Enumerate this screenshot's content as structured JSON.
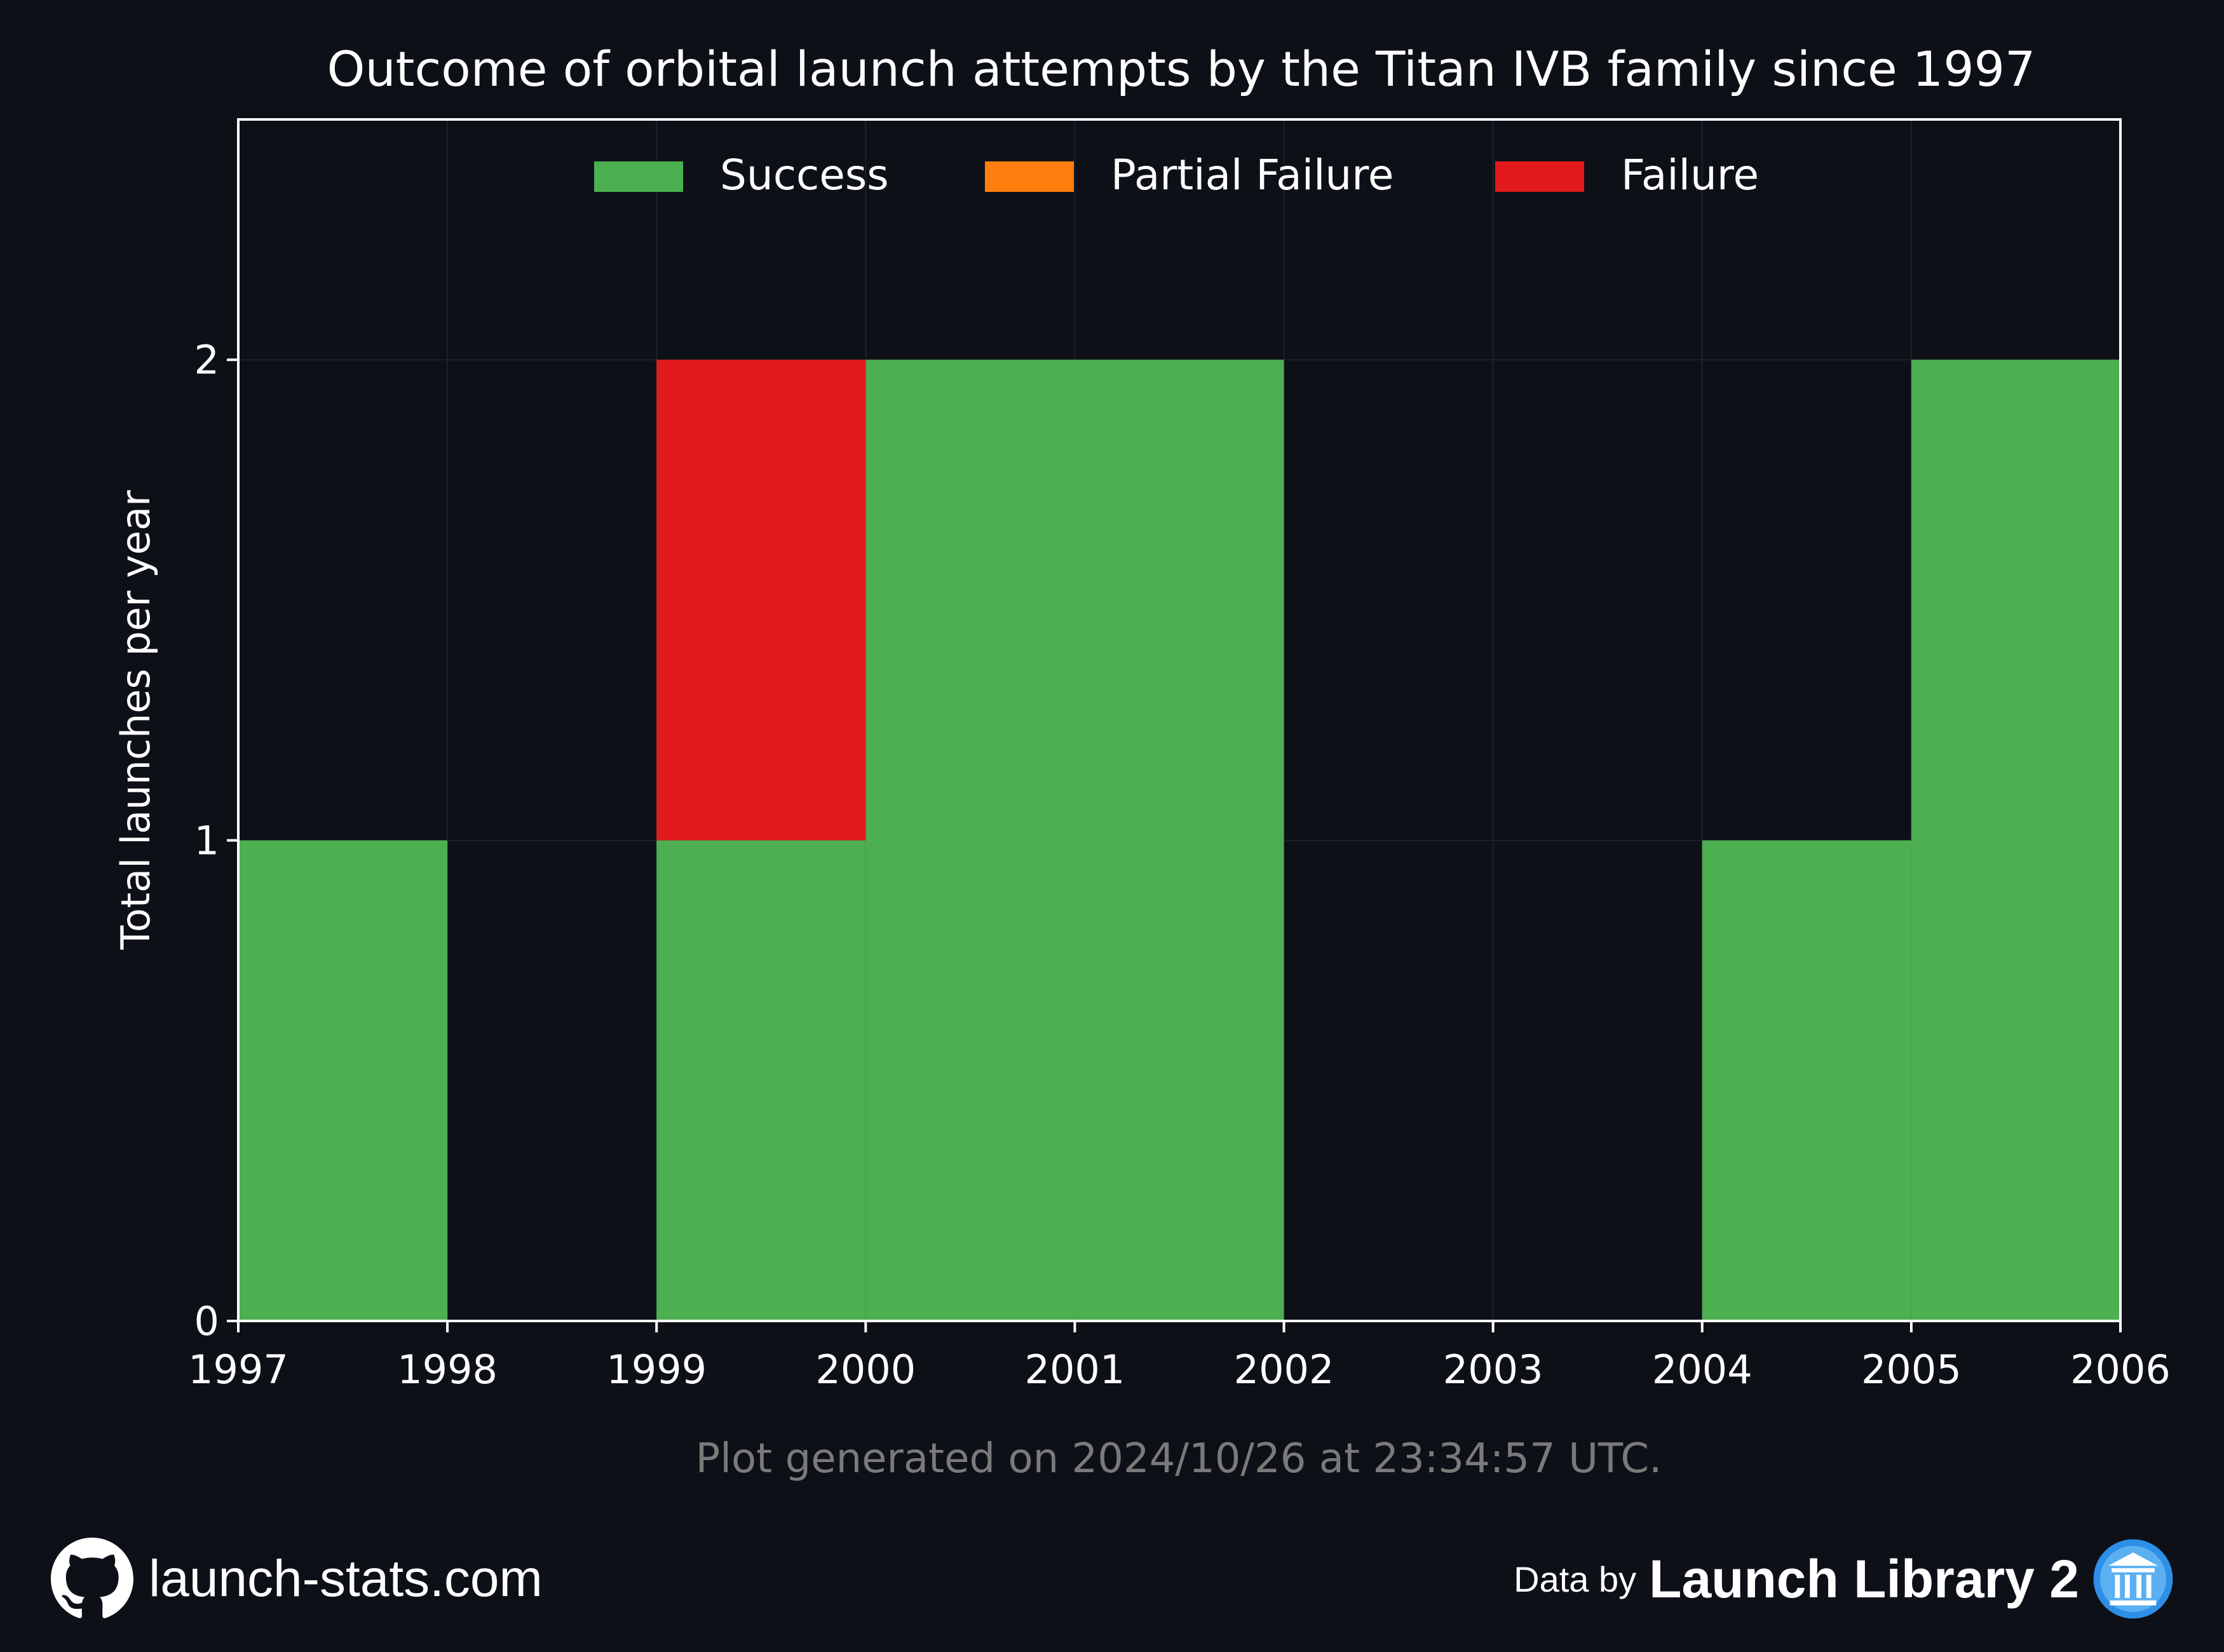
{
  "chart_data": {
    "type": "bar",
    "title": "Outcome of orbital launch attempts by the Titan IVB family since 1997",
    "xlabel": "",
    "ylabel": "Total launches per year",
    "categories": [
      "1997",
      "1998",
      "1999",
      "2000",
      "2001",
      "2002",
      "2003",
      "2004",
      "2005"
    ],
    "x_ticks": [
      "1997",
      "1998",
      "1999",
      "2000",
      "2001",
      "2002",
      "2003",
      "2004",
      "2005",
      "2006"
    ],
    "y_ticks": [
      "0",
      "1",
      "2"
    ],
    "ylim": [
      0,
      2.5
    ],
    "xlim": [
      1997,
      2006
    ],
    "stacked": true,
    "grid": true,
    "legend_position": "top-center",
    "series": [
      {
        "name": "Success",
        "color": "#4caf50",
        "values": [
          1,
          0,
          1,
          2,
          2,
          0,
          0,
          1,
          2
        ]
      },
      {
        "name": "Partial Failure",
        "color": "#ff7f0e",
        "values": [
          0,
          0,
          0,
          0,
          0,
          0,
          0,
          0,
          0
        ]
      },
      {
        "name": "Failure",
        "color": "#e31a1c",
        "values": [
          0,
          0,
          1,
          0,
          0,
          0,
          0,
          0,
          0
        ]
      }
    ]
  },
  "caption": "Plot generated on 2024/10/26 at 23:34:57 UTC.",
  "footer": {
    "site": "launch-stats.com",
    "site_icon": "github-icon",
    "data_by_prefix": "Data by",
    "data_by_name": "Launch Library 2",
    "data_by_icon": "library-icon"
  },
  "colors": {
    "background": "#0d1017",
    "axis": "#ffffff",
    "grid": "#1c222c",
    "caption": "#7a7a7a"
  }
}
